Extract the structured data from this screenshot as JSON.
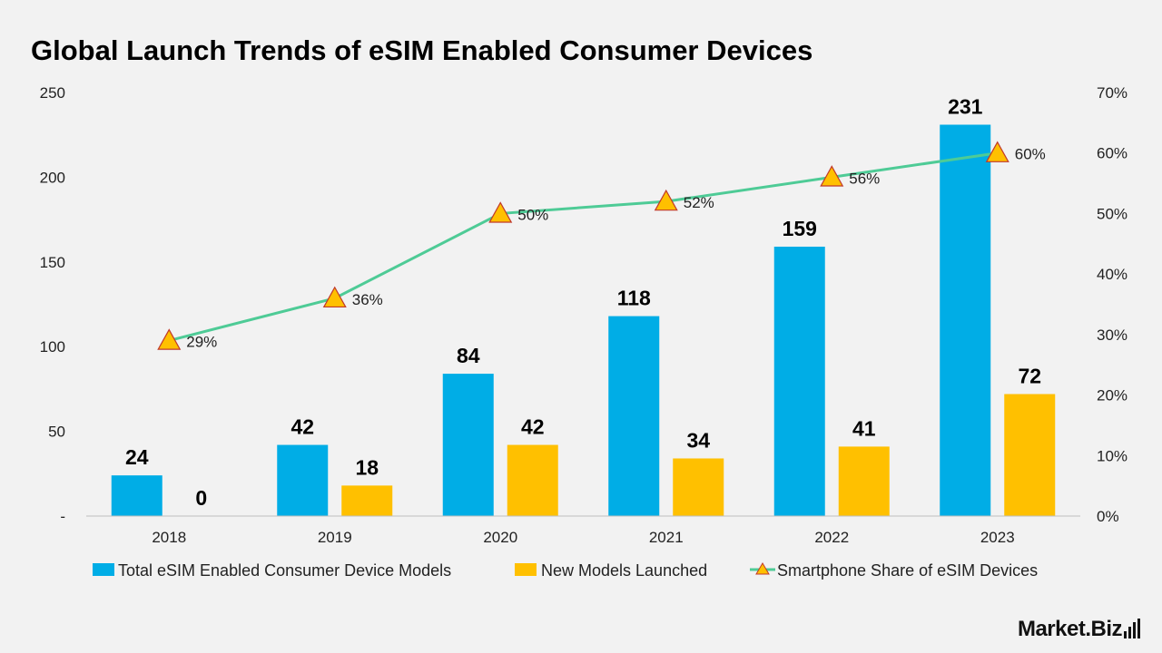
{
  "title": "Global Launch Trends of eSIM Enabled Consumer Devices",
  "colors": {
    "total": "#00ade6",
    "new": "#ffc000",
    "line": "#4ecb96",
    "marker_fill": "#ffc000",
    "marker_stroke": "#c0392b"
  },
  "chart_data": {
    "type": "bar",
    "categories": [
      "2018",
      "2019",
      "2020",
      "2021",
      "2022",
      "2023"
    ],
    "series": [
      {
        "name": "Total eSIM Enabled Consumer Device Models",
        "type": "bar",
        "axis": "left",
        "values": [
          24,
          42,
          84,
          118,
          159,
          231
        ]
      },
      {
        "name": "New Models Launched",
        "type": "bar",
        "axis": "left",
        "values": [
          0,
          18,
          42,
          34,
          41,
          72
        ]
      },
      {
        "name": "Smartphone Share of eSIM Devices",
        "type": "line",
        "axis": "right",
        "values": [
          29,
          36,
          50,
          52,
          56,
          60
        ],
        "labels": [
          "29%",
          "36%",
          "50%",
          "52%",
          "56%",
          "60%"
        ]
      }
    ],
    "left_axis": {
      "range": [
        0,
        250
      ],
      "ticks": [
        0,
        50,
        100,
        150,
        200,
        250
      ],
      "tick_labels": [
        "-",
        "50",
        "100",
        "150",
        "200",
        "250"
      ]
    },
    "right_axis": {
      "range": [
        0,
        70
      ],
      "ticks": [
        0,
        10,
        20,
        30,
        40,
        50,
        60,
        70
      ],
      "tick_labels": [
        "0%",
        "10%",
        "20%",
        "30%",
        "40%",
        "50%",
        "60%",
        "70%"
      ]
    },
    "grid": false,
    "legend_position": "bottom"
  },
  "brand": {
    "text": "Market.Biz"
  }
}
